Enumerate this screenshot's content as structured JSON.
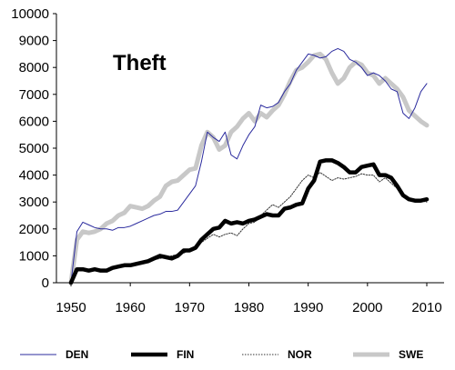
{
  "chart_data": {
    "type": "line",
    "title": "Theft",
    "xlabel": "",
    "ylabel": "",
    "xlim": [
      1950,
      2012
    ],
    "ylim": [
      0,
      10000
    ],
    "x_ticks": [
      "1950",
      "1960",
      "1970",
      "1980",
      "1990",
      "2000",
      "2010"
    ],
    "y_ticks": [
      "0",
      "1000",
      "2000",
      "3000",
      "4000",
      "5000",
      "6000",
      "7000",
      "8000",
      "9000",
      "10000"
    ],
    "grid": false,
    "legend_position": "bottom",
    "series": [
      {
        "name": "DEN",
        "color": "#2b2b9e",
        "style": "thin",
        "x": [
          1950,
          1951,
          1952,
          1953,
          1954,
          1955,
          1956,
          1957,
          1958,
          1959,
          1960,
          1961,
          1962,
          1963,
          1964,
          1965,
          1966,
          1967,
          1968,
          1969,
          1970,
          1971,
          1972,
          1973,
          1974,
          1975,
          1976,
          1977,
          1978,
          1979,
          1980,
          1981,
          1982,
          1983,
          1984,
          1985,
          1986,
          1987,
          1988,
          1989,
          1990,
          1991,
          1992,
          1993,
          1994,
          1995,
          1996,
          1997,
          1998,
          1999,
          2000,
          2001,
          2002,
          2003,
          2004,
          2005,
          2006,
          2007,
          2008,
          2009,
          2010
        ],
        "values": [
          0,
          1900,
          2250,
          2150,
          2050,
          2000,
          2000,
          1950,
          2050,
          2050,
          2100,
          2200,
          2300,
          2400,
          2500,
          2550,
          2650,
          2650,
          2700,
          3000,
          3300,
          3600,
          4500,
          5600,
          5400,
          5250,
          5600,
          4750,
          4600,
          5100,
          5500,
          5800,
          6600,
          6500,
          6550,
          6700,
          7100,
          7400,
          7900,
          8200,
          8500,
          8450,
          8350,
          8400,
          8600,
          8700,
          8600,
          8300,
          8200,
          8000,
          7700,
          7800,
          7700,
          7500,
          7200,
          7100,
          6300,
          6100,
          6500,
          7100,
          7400
        ]
      },
      {
        "name": "FIN",
        "color": "#000000",
        "style": "thick",
        "x": [
          1950,
          1951,
          1952,
          1953,
          1954,
          1955,
          1956,
          1957,
          1958,
          1959,
          1960,
          1961,
          1962,
          1963,
          1964,
          1965,
          1966,
          1967,
          1968,
          1969,
          1970,
          1971,
          1972,
          1973,
          1974,
          1975,
          1976,
          1977,
          1978,
          1979,
          1980,
          1981,
          1982,
          1983,
          1984,
          1985,
          1986,
          1987,
          1988,
          1989,
          1990,
          1991,
          1992,
          1993,
          1994,
          1995,
          1996,
          1997,
          1998,
          1999,
          2000,
          2001,
          2002,
          2003,
          2004,
          2005,
          2006,
          2007,
          2008,
          2009,
          2010
        ],
        "values": [
          0,
          500,
          500,
          450,
          500,
          450,
          450,
          550,
          600,
          650,
          650,
          700,
          750,
          800,
          900,
          1000,
          950,
          900,
          1000,
          1200,
          1200,
          1300,
          1600,
          1800,
          2000,
          2050,
          2300,
          2200,
          2250,
          2200,
          2300,
          2350,
          2450,
          2550,
          2500,
          2500,
          2750,
          2800,
          2900,
          2950,
          3500,
          3800,
          4500,
          4550,
          4550,
          4450,
          4300,
          4100,
          4100,
          4300,
          4350,
          4400,
          4000,
          4000,
          3900,
          3600,
          3250,
          3100,
          3050,
          3050,
          3100
        ]
      },
      {
        "name": "NOR",
        "color": "#333333",
        "style": "dotted",
        "x": [
          1956,
          1957,
          1958,
          1959,
          1960,
          1961,
          1962,
          1963,
          1964,
          1965,
          1966,
          1967,
          1968,
          1969,
          1970,
          1971,
          1972,
          1973,
          1974,
          1975,
          1976,
          1977,
          1978,
          1979,
          1980,
          1981,
          1982,
          1983,
          1984,
          1985,
          1986,
          1987,
          1988,
          1989,
          1990,
          1991,
          1992,
          1993,
          1994,
          1995,
          1996,
          1997,
          1998,
          1999,
          2000,
          2001,
          2002,
          2003,
          2004,
          2005,
          2006,
          2007,
          2008,
          2009,
          2010
        ],
        "values": [
          500,
          550,
          600,
          650,
          700,
          700,
          750,
          800,
          850,
          900,
          950,
          1000,
          1050,
          1100,
          1200,
          1350,
          1500,
          1650,
          1800,
          1700,
          1800,
          1850,
          1750,
          2000,
          2200,
          2250,
          2500,
          2700,
          2900,
          2800,
          3000,
          3200,
          3500,
          3800,
          4000,
          3900,
          4100,
          3950,
          3800,
          3900,
          3850,
          3900,
          3950,
          4050,
          4000,
          4000,
          3750,
          3900,
          3700,
          3500,
          3200,
          3100,
          3050,
          3050,
          3000
        ]
      },
      {
        "name": "SWE",
        "color": "#c8c8c8",
        "style": "thick",
        "x": [
          1950,
          1951,
          1952,
          1953,
          1954,
          1955,
          1956,
          1957,
          1958,
          1959,
          1960,
          1961,
          1962,
          1963,
          1964,
          1965,
          1966,
          1967,
          1968,
          1969,
          1970,
          1971,
          1972,
          1973,
          1974,
          1975,
          1976,
          1977,
          1978,
          1979,
          1980,
          1981,
          1982,
          1983,
          1984,
          1985,
          1986,
          1987,
          1988,
          1989,
          1990,
          1991,
          1992,
          1993,
          1994,
          1995,
          1996,
          1997,
          1998,
          1999,
          2000,
          2001,
          2002,
          2003,
          2004,
          2005,
          2006,
          2007,
          2008,
          2009,
          2010
        ],
        "values": [
          0,
          1600,
          1900,
          1850,
          1900,
          2000,
          2200,
          2300,
          2500,
          2600,
          2850,
          2800,
          2750,
          2850,
          3050,
          3200,
          3600,
          3750,
          3800,
          4000,
          4200,
          4250,
          5100,
          5600,
          5400,
          4950,
          5100,
          5600,
          5800,
          6100,
          6300,
          6000,
          6300,
          6150,
          6400,
          6600,
          7000,
          7500,
          7900,
          8000,
          8200,
          8450,
          8500,
          8300,
          7800,
          7400,
          7600,
          8000,
          8200,
          8100,
          7800,
          7700,
          7400,
          7600,
          7400,
          7200,
          6900,
          6400,
          6200,
          6000,
          5850
        ]
      }
    ]
  }
}
